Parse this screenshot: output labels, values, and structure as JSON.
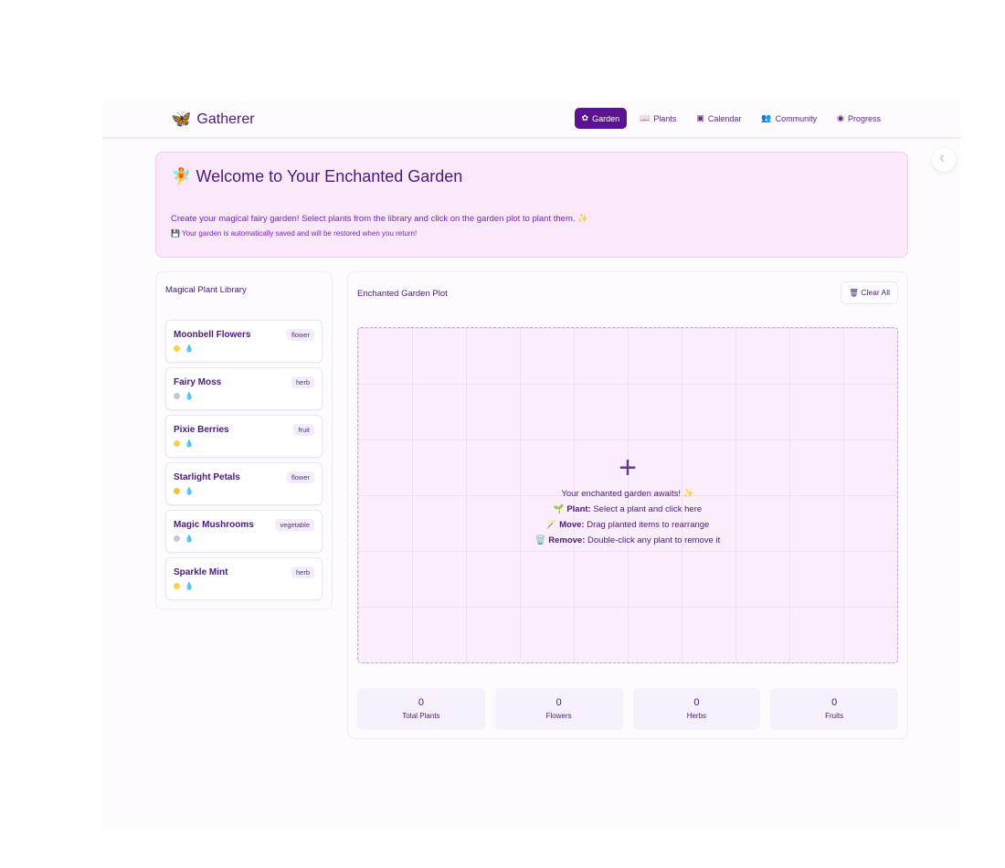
{
  "app": {
    "name": "Gatherer"
  },
  "nav": [
    {
      "label": "Garden",
      "icon": "sprout-icon",
      "active": true
    },
    {
      "label": "Plants",
      "icon": "book-icon"
    },
    {
      "label": "Calendar",
      "icon": "calendar-icon"
    },
    {
      "label": "Community",
      "icon": "users-icon"
    },
    {
      "label": "Progress",
      "icon": "camera-icon"
    }
  ],
  "welcome": {
    "title": "Welcome to Your Enchanted Garden",
    "description": "Create your magical fairy garden! Select plants from the library and click on the garden plot to plant them. ✨",
    "autosave": "Your garden is automatically saved and will be restored when you return!"
  },
  "library": {
    "title": "Magical Plant Library",
    "plants": [
      {
        "name": "Moonbell Flowers",
        "type": "flower",
        "sun": "#f5d24a"
      },
      {
        "name": "Fairy Moss",
        "type": "herb",
        "sun": "#c8c8c8"
      },
      {
        "name": "Pixie Berries",
        "type": "fruit",
        "sun": "#f5d24a"
      },
      {
        "name": "Starlight Petals",
        "type": "flower",
        "sun": "#f0c040"
      },
      {
        "name": "Magic Mushrooms",
        "type": "vegetable",
        "sun": "#c8c8c8"
      },
      {
        "name": "Sparkle Mint",
        "type": "herb",
        "sun": "#f5d24a"
      }
    ]
  },
  "plot": {
    "title": "Enchanted Garden Plot",
    "clear_label": "Clear All",
    "empty_title": "Your enchanted garden awaits! ✨",
    "hints": [
      {
        "icon": "🌱",
        "label": "Plant:",
        "text": " Select a plant and click here"
      },
      {
        "icon": "🪄",
        "label": "Move:",
        "text": " Drag planted items to rearrange"
      },
      {
        "icon": "🗑️",
        "label": "Remove:",
        "text": " Double-click any plant to remove it"
      }
    ]
  },
  "stats": [
    {
      "value": "0",
      "label": "Total Plants"
    },
    {
      "value": "0",
      "label": "Flowers"
    },
    {
      "value": "0",
      "label": "Herbs"
    },
    {
      "value": "0",
      "label": "Fruits"
    }
  ],
  "colors": {
    "primary": "#5a1490",
    "banner": "#fbe9fb"
  }
}
